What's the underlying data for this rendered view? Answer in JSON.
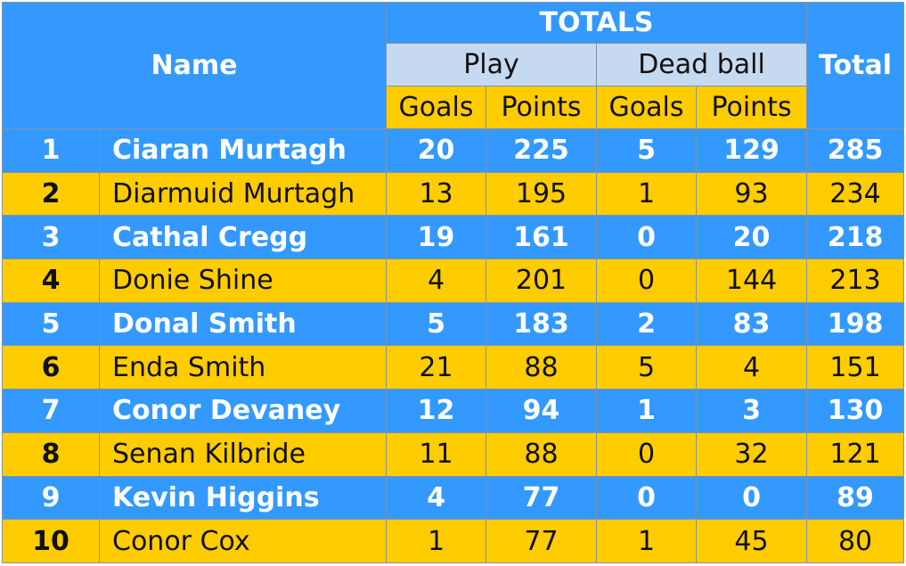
{
  "colors": {
    "blue": "#3399ff",
    "light_blue": "#c5d9f1",
    "gold": "#ffcc00"
  },
  "header": {
    "name": "Name",
    "totals": "TOTALS",
    "play": "Play",
    "dead_ball": "Dead ball",
    "total": "Total",
    "goals": "Goals",
    "points": "Points"
  },
  "rows": [
    {
      "rank": "1",
      "name": "Ciaran Murtagh",
      "play_goals": "20",
      "play_points": "225",
      "dead_goals": "5",
      "dead_points": "129",
      "total": "285"
    },
    {
      "rank": "2",
      "name": "Diarmuid Murtagh",
      "play_goals": "13",
      "play_points": "195",
      "dead_goals": "1",
      "dead_points": "93",
      "total": "234"
    },
    {
      "rank": "3",
      "name": "Cathal Cregg",
      "play_goals": "19",
      "play_points": "161",
      "dead_goals": "0",
      "dead_points": "20",
      "total": "218"
    },
    {
      "rank": "4",
      "name": "Donie Shine",
      "play_goals": "4",
      "play_points": "201",
      "dead_goals": "0",
      "dead_points": "144",
      "total": "213"
    },
    {
      "rank": "5",
      "name": "Donal Smith",
      "play_goals": "5",
      "play_points": "183",
      "dead_goals": "2",
      "dead_points": "83",
      "total": "198"
    },
    {
      "rank": "6",
      "name": "Enda Smith",
      "play_goals": "21",
      "play_points": "88",
      "dead_goals": "5",
      "dead_points": "4",
      "total": "151"
    },
    {
      "rank": "7",
      "name": "Conor Devaney",
      "play_goals": "12",
      "play_points": "94",
      "dead_goals": "1",
      "dead_points": "3",
      "total": "130"
    },
    {
      "rank": "8",
      "name": "Senan Kilbride",
      "play_goals": "11",
      "play_points": "88",
      "dead_goals": "0",
      "dead_points": "32",
      "total": "121"
    },
    {
      "rank": "9",
      "name": "Kevin Higgins",
      "play_goals": "4",
      "play_points": "77",
      "dead_goals": "0",
      "dead_points": "0",
      "total": "89"
    },
    {
      "rank": "10",
      "name": "Conor Cox",
      "play_goals": "1",
      "play_points": "77",
      "dead_goals": "1",
      "dead_points": "45",
      "total": "80"
    }
  ]
}
